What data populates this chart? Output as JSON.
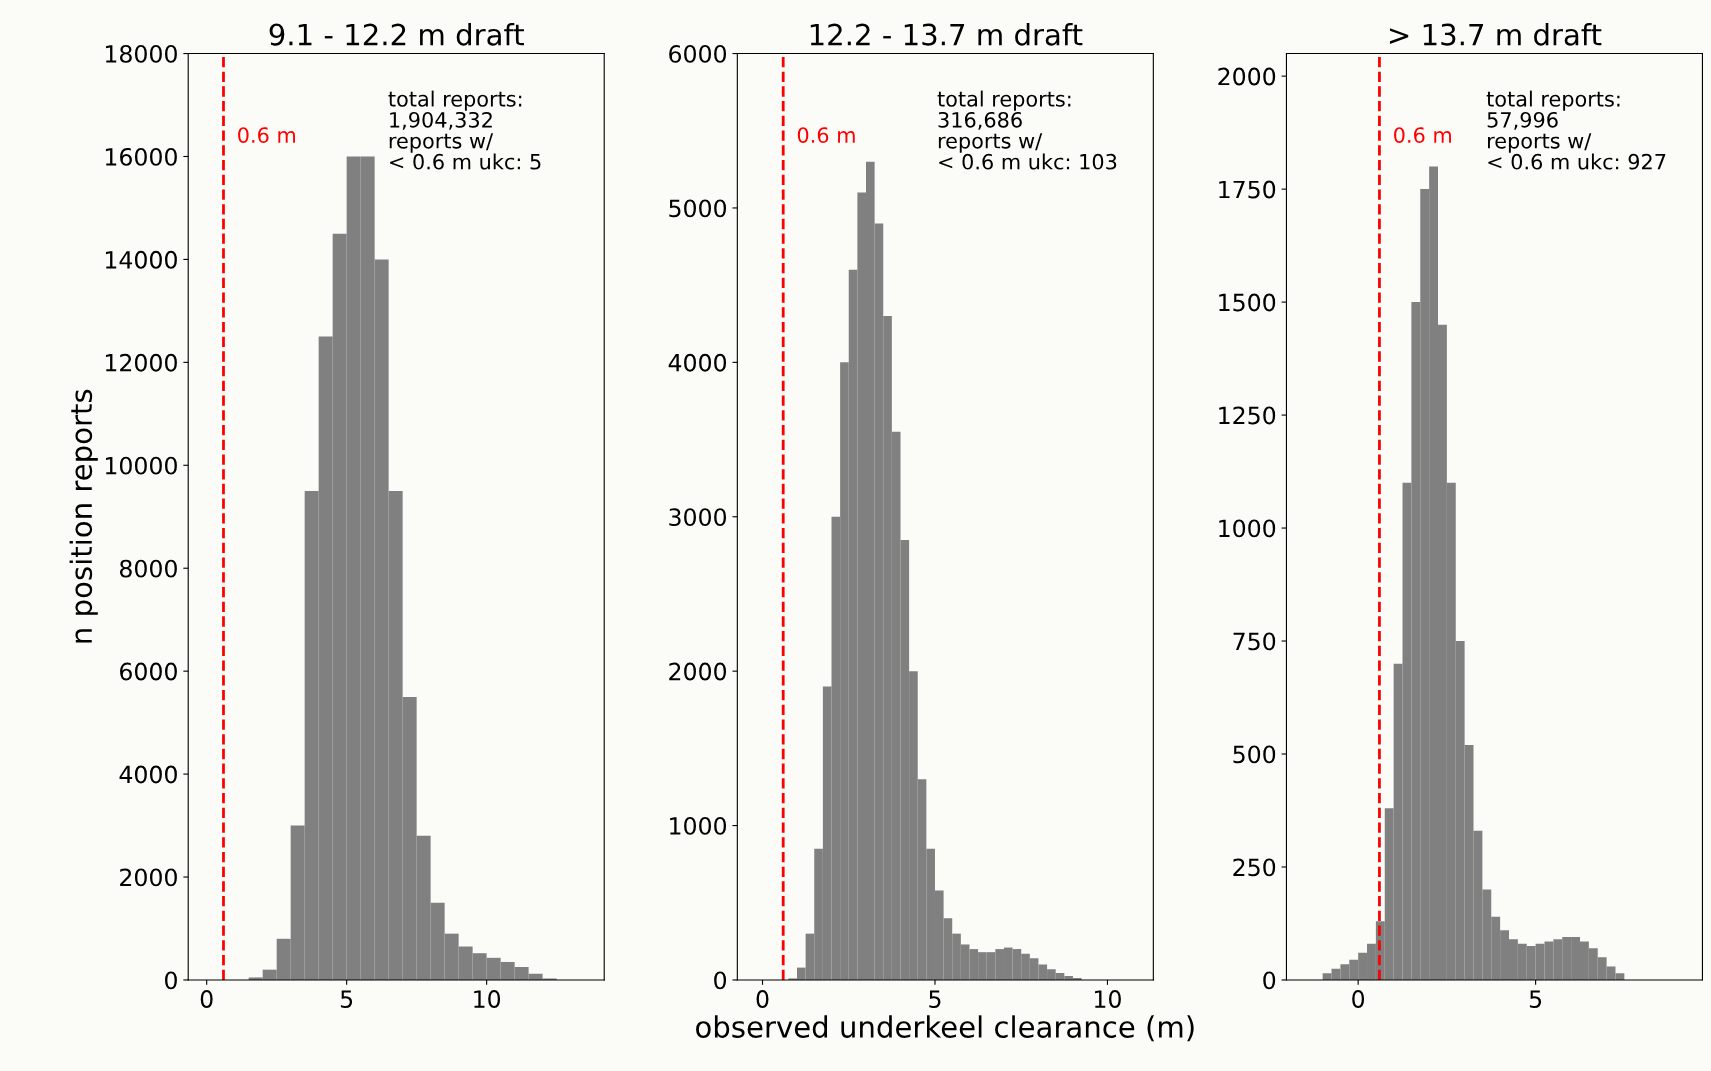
{
  "chart_data": [
    {
      "type": "histogram",
      "title": "9.1 - 12.2 m draft",
      "ylabel": "n position reports",
      "color": "#808080",
      "bins": [
        1.0,
        1.5,
        2.0,
        2.5,
        3.0,
        3.5,
        4.0,
        4.5,
        5.0,
        5.5,
        6.0,
        6.5,
        7.0,
        7.5,
        8.0,
        8.5,
        9.0,
        9.5,
        10.0,
        10.5,
        11.0,
        11.5,
        12.0,
        12.5
      ],
      "values": [
        0,
        50,
        200,
        800,
        3000,
        9500,
        12500,
        14500,
        16000,
        16000,
        14000,
        9500,
        5500,
        2800,
        1500,
        900,
        650,
        520,
        430,
        350,
        250,
        120,
        30
      ],
      "xlim": [
        -0.66,
        14.2
      ],
      "xticks": [
        0,
        5,
        10
      ],
      "ylim": [
        0,
        18000
      ],
      "yticks": [
        0,
        2000,
        4000,
        6000,
        8000,
        10000,
        12000,
        14000,
        16000,
        18000
      ],
      "ref_lines": [
        {
          "axis": "x",
          "value": 0.6,
          "label": "0.6 m",
          "color": "#ff0000",
          "line_style": "dashed"
        }
      ],
      "annotations": [
        "total reports:\n1,904,332\nreports w/\n< 0.6 m ukc: 5"
      ],
      "grid": false
    },
    {
      "type": "histogram",
      "title": "12.2 - 13.7 m draft",
      "xlabel": "observed underkeel clearance (m)",
      "color": "#808080",
      "bins": [
        0.75,
        1.0,
        1.25,
        1.5,
        1.75,
        2.0,
        2.25,
        2.5,
        2.75,
        3.0,
        3.25,
        3.5,
        3.75,
        4.0,
        4.25,
        4.5,
        4.75,
        5.0,
        5.25,
        5.5,
        5.75,
        6.0,
        6.25,
        6.5,
        6.75,
        7.0,
        7.25,
        7.5,
        7.75,
        8.0,
        8.25,
        8.5,
        8.75,
        9.0,
        9.25
      ],
      "values": [
        10,
        80,
        300,
        850,
        1900,
        3000,
        4000,
        4600,
        5100,
        5300,
        4900,
        4300,
        3550,
        2850,
        2000,
        1300,
        850,
        580,
        400,
        300,
        230,
        200,
        180,
        180,
        200,
        210,
        200,
        170,
        140,
        100,
        70,
        45,
        25,
        12
      ],
      "xlim": [
        -0.73,
        11.33
      ],
      "xticks": [
        0,
        5,
        10
      ],
      "ylim": [
        0,
        6000
      ],
      "yticks": [
        0,
        1000,
        2000,
        3000,
        4000,
        5000,
        6000
      ],
      "ref_lines": [
        {
          "axis": "x",
          "value": 0.6,
          "label": "0.6 m",
          "color": "#ff0000",
          "line_style": "dashed"
        }
      ],
      "annotations": [
        "total reports:\n316,686\nreports w/\n< 0.6 m ukc: 103"
      ],
      "grid": false
    },
    {
      "type": "histogram",
      "title": "> 13.7 m draft",
      "color": "#808080",
      "bins": [
        -1.0,
        -0.75,
        -0.5,
        -0.25,
        0.0,
        0.25,
        0.5,
        0.75,
        1.0,
        1.25,
        1.5,
        1.75,
        2.0,
        2.25,
        2.5,
        2.75,
        3.0,
        3.25,
        3.5,
        3.75,
        4.0,
        4.25,
        4.5,
        4.75,
        5.0,
        5.25,
        5.5,
        5.75,
        6.0,
        6.25,
        6.5,
        6.75,
        7.0,
        7.25,
        7.5
      ],
      "values": [
        15,
        25,
        35,
        45,
        60,
        80,
        130,
        380,
        700,
        1100,
        1500,
        1750,
        1800,
        1450,
        1100,
        750,
        520,
        330,
        200,
        140,
        110,
        90,
        80,
        75,
        80,
        85,
        90,
        95,
        95,
        85,
        70,
        50,
        30,
        15
      ],
      "xlim": [
        -2.02,
        9.7
      ],
      "xticks": [
        0,
        5
      ],
      "ylim": [
        0,
        2050
      ],
      "yticks": [
        0,
        250,
        500,
        750,
        1000,
        1250,
        1500,
        1750,
        2000
      ],
      "ref_lines": [
        {
          "axis": "x",
          "value": 0.6,
          "label": "0.6 m",
          "color": "#ff0000",
          "line_style": "dashed"
        }
      ],
      "annotations": [
        "total reports:\n57,996\nreports w/\n< 0.6 m ukc: 927"
      ],
      "grid": false
    }
  ]
}
